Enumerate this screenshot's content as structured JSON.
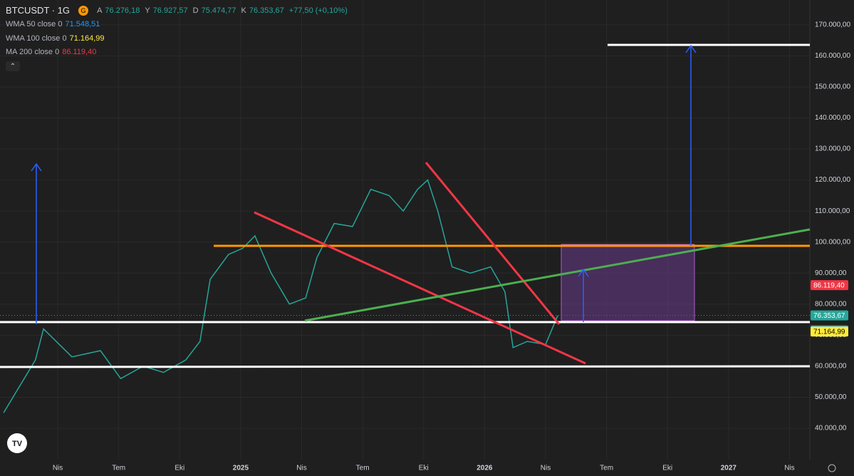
{
  "header": {
    "symbol": "BTCUSDT · 1G",
    "badge": "G",
    "ohlc": [
      {
        "key": "A",
        "label": "76.276,18"
      },
      {
        "key": "Y",
        "label": "76.927,57"
      },
      {
        "key": "D",
        "label": "75.474,77"
      },
      {
        "key": "K",
        "label": "76.353,67"
      }
    ],
    "change": "+77,50 (+0,10%)",
    "indicators": [
      {
        "name": "WMA 50 close 0",
        "value": 71548.51,
        "label": "71.548,51",
        "color": "#2196f3",
        "text_color": "#ffffff"
      },
      {
        "name": "WMA 100 close 0",
        "value": 71164.99,
        "label": "71.164,99",
        "color": "#ffeb3b",
        "text_color": "#000000"
      },
      {
        "name": "MA 200 close 0",
        "value": 86119.4,
        "label": "86.119,40",
        "color": "#f23645",
        "text_color": "#ffffff"
      }
    ]
  },
  "chart_data": {
    "type": "line",
    "color": "#26a69a",
    "x": [
      0.34,
      1.9,
      2.3,
      3.7,
      5.1,
      6.1,
      7.2,
      8.2,
      9.3,
      10,
      10.5,
      11.4,
      12.1,
      12.7,
      13.5,
      14.4,
      15.2,
      15.75,
      16.6,
      17.5,
      18.4,
      19.3,
      20,
      20.7,
      21.2,
      21.7,
      22.4,
      23.3,
      24.3,
      25,
      25.4,
      26.1,
      27,
      27.6
    ],
    "values": [
      45000,
      62000,
      72000,
      63000,
      65000,
      56000,
      60000,
      58000,
      62000,
      68000,
      88000,
      96000,
      98000,
      102000,
      90000,
      80000,
      82000,
      95000,
      106000,
      105000,
      117000,
      115000,
      110000,
      117000,
      120000,
      110000,
      92000,
      90000,
      92000,
      84000,
      66000,
      68000,
      67000,
      76353.67
    ],
    "last_price": {
      "value": 76353.67,
      "label": "76.353,67"
    },
    "xlim": [
      0.16,
      40
    ],
    "xticks": [
      {
        "value": 3,
        "label": "Nis"
      },
      {
        "value": 6,
        "label": "Tem"
      },
      {
        "value": 9,
        "label": "Eki"
      },
      {
        "value": 12,
        "label": "2025"
      },
      {
        "value": 15,
        "label": "Nis"
      },
      {
        "value": 18,
        "label": "Tem"
      },
      {
        "value": 21,
        "label": "Eki"
      },
      {
        "value": 24,
        "label": "2026"
      },
      {
        "value": 27,
        "label": "Nis"
      },
      {
        "value": 30,
        "label": "Tem"
      },
      {
        "value": 33,
        "label": "Eki"
      },
      {
        "value": 36,
        "label": "2027"
      },
      {
        "value": 39,
        "label": "Nis"
      }
    ],
    "ylim": [
      29900,
      178000
    ],
    "yticks": [
      {
        "value": 40000,
        "label": "40.000,00"
      },
      {
        "value": 50000,
        "label": "50.000,00"
      },
      {
        "value": 60000,
        "label": "60.000,00"
      },
      {
        "value": 70000,
        "label": "70.000,00"
      },
      {
        "value": 80000,
        "label": "80.000,00"
      },
      {
        "value": 90000,
        "label": "90.000,00"
      },
      {
        "value": 100000,
        "label": "100.000,00"
      },
      {
        "value": 110000,
        "label": "110.000,00"
      },
      {
        "value": 120000,
        "label": "120.000,00"
      },
      {
        "value": 130000,
        "label": "130.000,00"
      },
      {
        "value": 140000,
        "label": "140.000,00"
      },
      {
        "value": 150000,
        "label": "150.000,00"
      },
      {
        "value": 160000,
        "label": "160.000,00"
      },
      {
        "value": 170000,
        "label": "170.000,00"
      }
    ],
    "grid": true
  }
}
